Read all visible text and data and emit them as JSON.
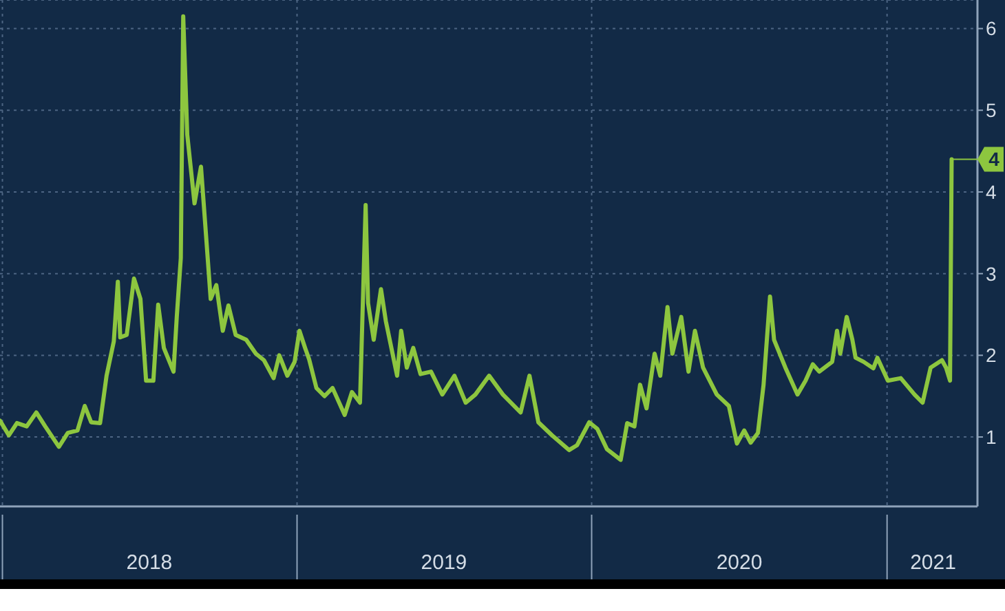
{
  "chart_data": {
    "type": "line",
    "color": "#8dc63f",
    "marker": "none",
    "line_style": "solid",
    "grid": true,
    "xlim": [
      "2017-12-29",
      "2021-04-23"
    ],
    "xticks": [
      {
        "value": "2018-01-01",
        "label": null
      },
      {
        "value": "2018-07-02",
        "label": "2018"
      },
      {
        "value": "2019-01-01",
        "label": null
      },
      {
        "value": "2019-07-02",
        "label": "2019"
      },
      {
        "value": "2020-01-01",
        "label": null
      },
      {
        "value": "2020-07-02",
        "label": "2020"
      },
      {
        "value": "2021-01-01",
        "label": null
      },
      {
        "value": "2021-02-27",
        "label": "2021"
      }
    ],
    "ylim": [
      0.15,
      6.35
    ],
    "yticks": [
      1,
      2,
      3,
      4,
      5,
      6
    ],
    "annotations": [
      {
        "text": "4",
        "x": "2021-03-22",
        "y": 4.4
      }
    ],
    "x": [
      "2017-12-29",
      "2018-01-09",
      "2018-01-19",
      "2018-01-31",
      "2018-02-12",
      "2018-02-23",
      "2018-03-12",
      "2018-03-23",
      "2018-04-04",
      "2018-04-13",
      "2018-04-21",
      "2018-05-02",
      "2018-05-10",
      "2018-05-19",
      "2018-05-24",
      "2018-05-27",
      "2018-06-04",
      "2018-06-13",
      "2018-06-21",
      "2018-06-28",
      "2018-07-07",
      "2018-07-13",
      "2018-07-20",
      "2018-08-01",
      "2018-08-05",
      "2018-08-10",
      "2018-08-13",
      "2018-08-18",
      "2018-08-27",
      "2018-09-04",
      "2018-09-09",
      "2018-09-16",
      "2018-09-23",
      "2018-10-01",
      "2018-10-08",
      "2018-10-17",
      "2018-10-30",
      "2018-11-11",
      "2018-11-21",
      "2018-12-03",
      "2018-12-10",
      "2018-12-20",
      "2018-12-29",
      "2019-01-04",
      "2019-01-11",
      "2019-01-16",
      "2019-01-25",
      "2019-02-04",
      "2019-02-14",
      "2019-03-01",
      "2019-03-10",
      "2019-03-20",
      "2019-03-27",
      "2019-03-30",
      "2019-04-06",
      "2019-04-15",
      "2019-04-21",
      "2019-05-05",
      "2019-05-10",
      "2019-05-17",
      "2019-05-25",
      "2019-06-03",
      "2019-06-16",
      "2019-06-30",
      "2019-07-15",
      "2019-07-29",
      "2019-08-10",
      "2019-08-27",
      "2019-09-13",
      "2019-10-05",
      "2019-10-16",
      "2019-10-27",
      "2019-11-13",
      "2019-12-04",
      "2019-12-14",
      "2019-12-29",
      "2020-01-08",
      "2020-01-20",
      "2020-02-06",
      "2020-02-14",
      "2020-02-23",
      "2020-03-01",
      "2020-03-09",
      "2020-03-19",
      "2020-03-26",
      "2020-04-04",
      "2020-04-10",
      "2020-04-21",
      "2020-04-30",
      "2020-05-08",
      "2020-05-18",
      "2020-06-04",
      "2020-06-19",
      "2020-06-29",
      "2020-07-08",
      "2020-07-16",
      "2020-07-25",
      "2020-08-01",
      "2020-08-09",
      "2020-08-14",
      "2020-08-28",
      "2020-09-12",
      "2020-09-22",
      "2020-10-01",
      "2020-10-09",
      "2020-10-25",
      "2020-10-31",
      "2020-11-04",
      "2020-11-12",
      "2020-11-19",
      "2020-11-23",
      "2020-12-03",
      "2020-12-15",
      "2020-12-20",
      "2021-01-02",
      "2021-01-18",
      "2021-02-04",
      "2021-02-14",
      "2021-02-24",
      "2021-03-10",
      "2021-03-15",
      "2021-03-20",
      "2021-03-22"
    ],
    "values": [
      1.2,
      1.02,
      1.17,
      1.13,
      1.3,
      1.13,
      0.88,
      1.05,
      1.08,
      1.38,
      1.18,
      1.17,
      1.75,
      2.17,
      2.9,
      2.22,
      2.25,
      2.94,
      2.69,
      1.69,
      1.69,
      2.62,
      2.09,
      1.8,
      2.47,
      3.19,
      6.15,
      4.7,
      3.86,
      4.31,
      3.64,
      2.69,
      2.86,
      2.3,
      2.61,
      2.25,
      2.19,
      2.02,
      1.94,
      1.72,
      2.0,
      1.75,
      1.92,
      2.3,
      2.09,
      1.95,
      1.6,
      1.5,
      1.6,
      1.27,
      1.55,
      1.42,
      3.84,
      2.64,
      2.19,
      2.81,
      2.42,
      1.75,
      2.3,
      1.85,
      2.09,
      1.77,
      1.8,
      1.52,
      1.75,
      1.42,
      1.52,
      1.75,
      1.52,
      1.3,
      1.75,
      1.18,
      1.02,
      0.84,
      0.9,
      1.18,
      1.1,
      0.85,
      0.72,
      1.17,
      1.13,
      1.64,
      1.35,
      2.02,
      1.75,
      2.59,
      2.02,
      2.47,
      1.8,
      2.3,
      1.85,
      1.52,
      1.38,
      0.92,
      1.08,
      0.93,
      1.05,
      1.64,
      2.72,
      2.19,
      1.85,
      1.52,
      1.69,
      1.89,
      1.8,
      1.92,
      2.3,
      2.02,
      2.47,
      2.19,
      1.97,
      1.92,
      1.84,
      1.97,
      1.69,
      1.72,
      1.52,
      1.42,
      1.85,
      1.94,
      1.85,
      1.69,
      4.4
    ]
  }
}
